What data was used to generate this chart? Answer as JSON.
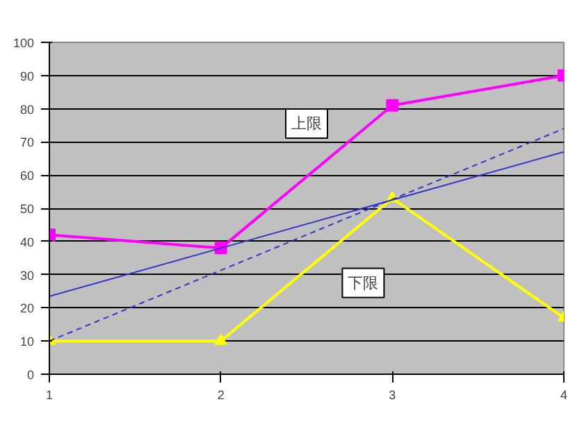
{
  "chart_data": {
    "type": "line",
    "x": [
      1,
      2,
      3,
      4
    ],
    "xlim": [
      1,
      4
    ],
    "xticks": [
      1,
      2,
      3,
      4
    ],
    "ylim": [
      0,
      100
    ],
    "yticks": [
      0,
      10,
      20,
      30,
      40,
      50,
      60,
      70,
      80,
      90,
      100
    ],
    "grid": "y",
    "series": [
      {
        "name": "上限",
        "color": "#ff00ff",
        "values": [
          42,
          38,
          81,
          90
        ],
        "marker": "square"
      },
      {
        "name": "下限",
        "color": "#ffff00",
        "values": [
          10,
          10,
          53,
          17
        ],
        "marker": "triangle"
      },
      {
        "type": "line",
        "color": "#3333cc",
        "values": [
          23.5,
          38,
          52.5,
          67
        ],
        "marker": "none",
        "line_style": "solid"
      },
      {
        "type": "line",
        "color": "#3333cc",
        "values": [
          10,
          31.3,
          52.7,
          74
        ],
        "marker": "none",
        "line_style": "dashed"
      }
    ]
  }
}
